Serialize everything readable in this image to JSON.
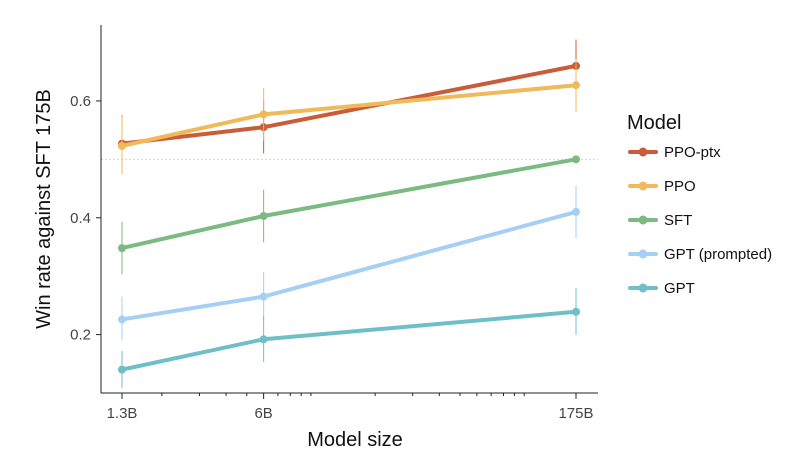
{
  "chart_data": {
    "type": "line",
    "xlabel": "Model size",
    "ylabel": "Win rate against SFT 175B",
    "x_scale": "log",
    "categories": [
      "1.3B",
      "6B",
      "175B"
    ],
    "x": [
      1.3,
      6,
      175
    ],
    "ylim": [
      0.1,
      0.73
    ],
    "y_ticks": [
      0.2,
      0.4,
      0.6
    ],
    "y_tick_labels": [
      "0.2",
      "0.4",
      "0.6"
    ],
    "reference_line": 0.5,
    "grid": false,
    "legend_title": "Model",
    "legend_position": "right",
    "series": [
      {
        "name": "PPO-ptx",
        "color": "#c95d3a",
        "values": [
          0.527,
          0.555,
          0.66
        ],
        "err_low": [
          0.475,
          0.51,
          0.615
        ],
        "err_high": [
          0.575,
          0.6,
          0.705
        ]
      },
      {
        "name": "PPO",
        "color": "#f0b95a",
        "values": [
          0.523,
          0.577,
          0.627
        ],
        "err_low": [
          0.475,
          0.532,
          0.582
        ],
        "err_high": [
          0.573,
          0.622,
          0.672
        ]
      },
      {
        "name": "SFT",
        "color": "#7dba82",
        "values": [
          0.348,
          0.403,
          0.5
        ],
        "err_low": [
          0.303,
          0.358,
          0.5
        ],
        "err_high": [
          0.393,
          0.448,
          0.5
        ]
      },
      {
        "name": "GPT (prompted)",
        "color": "#a6cff5",
        "values": [
          0.226,
          0.265,
          0.41
        ],
        "err_low": [
          0.19,
          0.225,
          0.365
        ],
        "err_high": [
          0.265,
          0.307,
          0.455
        ]
      },
      {
        "name": "GPT",
        "color": "#6fbfc8",
        "values": [
          0.14,
          0.192,
          0.239
        ],
        "err_low": [
          0.108,
          0.153,
          0.2
        ],
        "err_high": [
          0.172,
          0.232,
          0.28
        ]
      }
    ]
  }
}
